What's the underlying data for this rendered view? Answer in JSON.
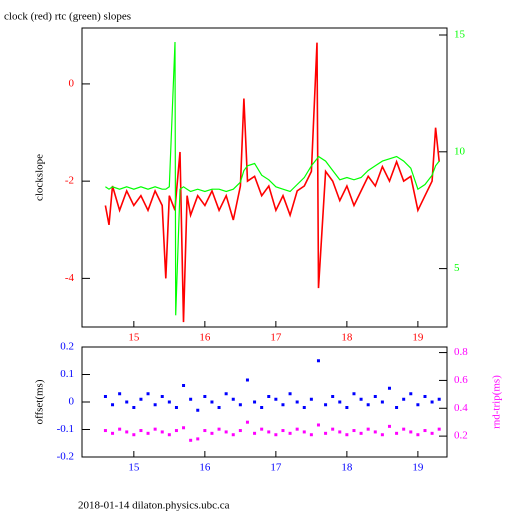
{
  "chart_data": [
    {
      "type": "line",
      "title": "clock (red) rtc (green) slopes",
      "ylabel": "clockslope",
      "x": [
        14.6,
        14.65,
        14.7,
        14.8,
        14.9,
        15.0,
        15.1,
        15.2,
        15.3,
        15.4,
        15.45,
        15.5,
        15.58,
        15.59,
        15.65,
        15.7,
        15.75,
        15.8,
        15.9,
        16.0,
        16.1,
        16.2,
        16.3,
        16.4,
        16.5,
        16.55,
        16.6,
        16.7,
        16.8,
        16.9,
        17.0,
        17.1,
        17.2,
        17.3,
        17.4,
        17.5,
        17.58,
        17.6,
        17.7,
        17.8,
        17.9,
        18.0,
        18.1,
        18.2,
        18.3,
        18.4,
        18.5,
        18.6,
        18.7,
        18.8,
        18.9,
        19.0,
        19.1,
        19.2,
        19.25,
        19.3
      ],
      "series": [
        {
          "color": "#ff0000",
          "values": [
            -2.5,
            -2.9,
            -2.1,
            -2.6,
            -2.2,
            -2.5,
            -2.3,
            -2.6,
            -2.2,
            -2.5,
            -4.0,
            -2.3,
            -2.6,
            -2.4,
            -1.4,
            -4.9,
            -2.3,
            -2.7,
            -2.3,
            -2.5,
            -2.2,
            -2.6,
            -2.3,
            -2.8,
            -2.1,
            -0.3,
            -2.0,
            -1.9,
            -2.3,
            -2.1,
            -2.6,
            -2.3,
            -2.7,
            -2.2,
            -2.1,
            -1.8,
            0.85,
            -4.2,
            -1.8,
            -2.0,
            -2.4,
            -2.1,
            -2.5,
            -2.2,
            -1.9,
            -2.1,
            -1.7,
            -2.0,
            -1.6,
            -2.0,
            -1.9,
            -2.6,
            -2.3,
            -2.0,
            -0.9,
            -1.6
          ]
        },
        {
          "color": "#00ff00",
          "axis": "y2",
          "values": [
            8.5,
            8.4,
            8.5,
            8.4,
            8.5,
            8.4,
            8.5,
            8.4,
            8.5,
            8.4,
            8.4,
            8.5,
            14.7,
            3.0,
            8.4,
            8.5,
            8.4,
            8.3,
            8.4,
            8.3,
            8.4,
            8.4,
            8.3,
            8.4,
            8.7,
            9.2,
            9.4,
            9.5,
            9.0,
            8.8,
            8.5,
            8.4,
            8.3,
            8.6,
            8.9,
            9.4,
            9.7,
            9.8,
            9.6,
            9.2,
            8.8,
            8.9,
            8.8,
            8.9,
            9.2,
            9.4,
            9.6,
            9.7,
            9.8,
            9.6,
            9.3,
            8.4,
            8.6,
            9.0,
            9.4,
            9.6
          ]
        }
      ],
      "xlim": [
        14.27,
        19.41
      ],
      "xticks": [
        15,
        16,
        17,
        18,
        19
      ],
      "xtick_color": "#ff0000",
      "ylim": [
        -5.0,
        1.15
      ],
      "yticks": [
        -4,
        -2,
        0
      ],
      "ytick_color": "#ff0000",
      "y2lim": [
        2.5,
        15.3
      ],
      "y2ticks": [
        5,
        10,
        15
      ],
      "y2tick_color": "#00ff00"
    },
    {
      "type": "scatter",
      "ylabel": "offset(ms)",
      "y2label": "rnd-trip(ms)",
      "y2label_color": "#ff00ff",
      "x": [
        14.6,
        14.7,
        14.8,
        14.9,
        15.0,
        15.1,
        15.2,
        15.3,
        15.4,
        15.5,
        15.6,
        15.7,
        15.8,
        15.9,
        16.0,
        16.1,
        16.2,
        16.3,
        16.4,
        16.5,
        16.6,
        16.7,
        16.8,
        16.9,
        17.0,
        17.1,
        17.2,
        17.3,
        17.4,
        17.5,
        17.6,
        17.7,
        17.8,
        17.9,
        18.0,
        18.1,
        18.2,
        18.3,
        18.4,
        18.5,
        18.6,
        18.7,
        18.8,
        18.9,
        19.0,
        19.1,
        19.2,
        19.3
      ],
      "series": [
        {
          "color": "#0000ff",
          "values": [
            0.02,
            -0.01,
            0.03,
            0.0,
            -0.02,
            0.01,
            0.03,
            -0.01,
            0.02,
            0.0,
            -0.02,
            0.06,
            0.01,
            -0.03,
            0.02,
            0.0,
            -0.02,
            0.03,
            0.01,
            -0.01,
            0.08,
            0.0,
            -0.02,
            0.02,
            0.01,
            -0.01,
            0.03,
            0.0,
            -0.02,
            0.01,
            0.15,
            -0.01,
            0.02,
            0.0,
            -0.02,
            0.03,
            0.01,
            -0.01,
            0.02,
            0.0,
            0.05,
            -0.02,
            0.01,
            0.03,
            -0.01,
            0.02,
            0.0,
            0.01
          ]
        },
        {
          "color": "#ff00ff",
          "axis": "y2",
          "values": [
            0.24,
            0.22,
            0.25,
            0.23,
            0.21,
            0.24,
            0.22,
            0.25,
            0.23,
            0.21,
            0.24,
            0.26,
            0.17,
            0.18,
            0.24,
            0.22,
            0.25,
            0.23,
            0.21,
            0.24,
            0.3,
            0.22,
            0.25,
            0.23,
            0.21,
            0.24,
            0.22,
            0.25,
            0.23,
            0.21,
            0.28,
            0.22,
            0.25,
            0.23,
            0.21,
            0.24,
            0.22,
            0.25,
            0.23,
            0.21,
            0.27,
            0.22,
            0.25,
            0.23,
            0.21,
            0.24,
            0.22,
            0.25
          ]
        }
      ],
      "xlim": [
        14.27,
        19.41
      ],
      "xticks": [
        15,
        16,
        17,
        18,
        19
      ],
      "xtick_color": "#0000ff",
      "ylim": [
        -0.2,
        0.2
      ],
      "yticks": [
        -0.2,
        -0.1,
        0,
        0.1,
        0.2
      ],
      "ytick_color": "#0000ff",
      "y2lim": [
        0.05,
        0.84
      ],
      "y2ticks": [
        0.2,
        0.4,
        0.6,
        0.8
      ],
      "y2tick_color": "#ff00ff"
    }
  ],
  "footer": "2018-01-14 dilaton.physics.ubc.ca"
}
